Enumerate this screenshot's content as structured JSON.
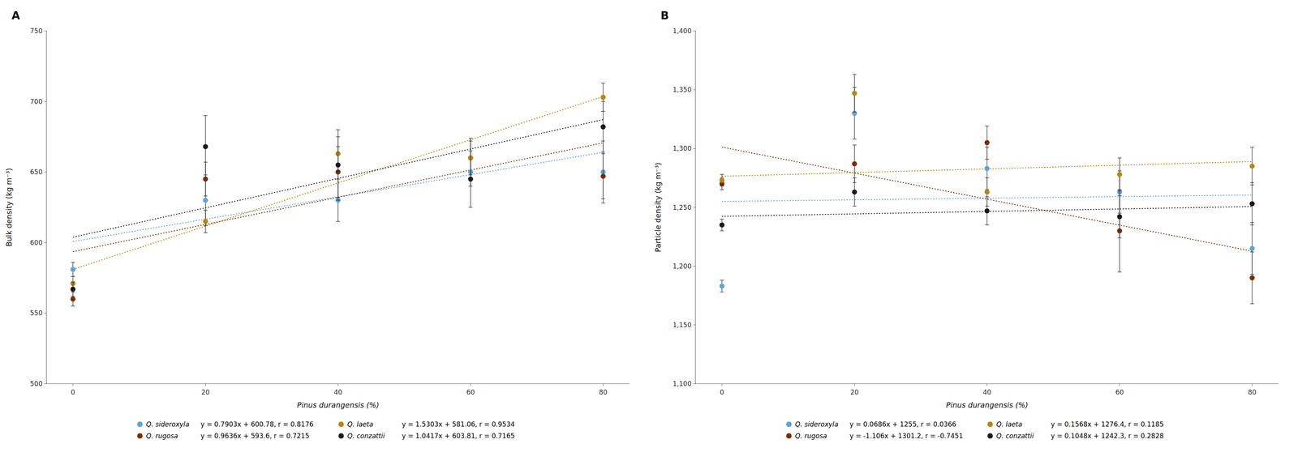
{
  "chart_data": [
    {
      "type": "scatter",
      "title": "A",
      "x_label": "Pinus durangensis (%)",
      "y_label": "Bulk density (kg m⁻³)",
      "x": [
        0,
        20,
        40,
        60,
        80
      ],
      "xlim": [
        -4,
        84
      ],
      "xticks": [
        0,
        20,
        40,
        60,
        80
      ],
      "ylim": [
        500,
        750
      ],
      "yticks": [
        500,
        550,
        600,
        650,
        700,
        750
      ],
      "grid": false,
      "legend": "bottom",
      "marker": "circle",
      "line_style": "dotted",
      "series": [
        {
          "name": "Q. sideroxyla",
          "color": "#5BA4DC",
          "values": [
            581,
            630,
            630,
            650,
            650
          ],
          "errors": [
            5,
            18,
            15,
            10,
            22
          ],
          "equation": "y = 0.7903x + 600.78, r = 0.8176",
          "trend_x": [
            0,
            80
          ],
          "trend_values": [
            600.78,
            664.004
          ]
        },
        {
          "name": "Q. rugosa",
          "color": "#7B2D00",
          "values": [
            560,
            645,
            650,
            660,
            647
          ],
          "errors": [
            5,
            12,
            18,
            14,
            16
          ],
          "equation": "y = 0.9636x + 593.6, r = 0.7215",
          "trend_x": [
            0,
            80
          ],
          "trend_values": [
            593.6,
            670.688
          ]
        },
        {
          "name": "Q. laeta",
          "color": "#B8860B",
          "values": [
            571,
            615,
            663,
            660,
            703
          ],
          "errors": [
            5,
            8,
            12,
            12,
            10
          ],
          "equation": "y = 1.5303x + 581.06, r = 0.9534",
          "trend_x": [
            0,
            80
          ],
          "trend_values": [
            581.06,
            703.484
          ]
        },
        {
          "name": "Q. conzattii",
          "color": "#1A1A1A",
          "values": [
            567,
            668,
            655,
            645,
            682
          ],
          "errors": [
            5,
            22,
            25,
            20,
            18
          ],
          "equation": "y = 1.0417x + 603.81, r = 0.7165",
          "trend_x": [
            0,
            80
          ],
          "trend_values": [
            603.81,
            687.146
          ]
        }
      ]
    },
    {
      "type": "scatter",
      "title": "B",
      "x_label": "Pinus durangensis (%)",
      "y_label": "Particle density (kg m⁻³)",
      "x": [
        0,
        20,
        40,
        60,
        80
      ],
      "xlim": [
        -4,
        84
      ],
      "xticks": [
        0,
        20,
        40,
        60,
        80
      ],
      "ylim": [
        1100,
        1400
      ],
      "yticks": [
        {
          "value": 1100,
          "label": "1,100"
        },
        {
          "value": 1150,
          "label": "1,150"
        },
        {
          "value": 1200,
          "label": "1,200"
        },
        {
          "value": 1250,
          "label": "1,250"
        },
        {
          "value": 1300,
          "label": "1,300"
        },
        {
          "value": 1350,
          "label": "1,350"
        },
        {
          "value": 1400,
          "label": "1,400"
        }
      ],
      "grid": false,
      "legend": "bottom",
      "marker": "circle",
      "line_style": "dotted",
      "series": [
        {
          "name": "Q. sideroxyla",
          "color": "#5BA4DC",
          "values": [
            1183,
            1330,
            1283,
            1263,
            1215
          ],
          "errors": [
            5,
            22,
            18,
            18,
            22
          ],
          "equation": "y = 0.0686x + 1255, r = 0.0366",
          "trend_x": [
            0,
            80
          ],
          "trend_values": [
            1255,
            1260.488
          ]
        },
        {
          "name": "Q. rugosa",
          "color": "#7B2D00",
          "values": [
            1270,
            1287,
            1305,
            1230,
            1190
          ],
          "errors": [
            5,
            16,
            14,
            35,
            22
          ],
          "equation": "y = -1.106x + 1301.2, r = -0.7451",
          "trend_x": [
            0,
            80
          ],
          "trend_values": [
            1301.2,
            1212.72
          ]
        },
        {
          "name": "Q. laeta",
          "color": "#B8860B",
          "values": [
            1273,
            1347,
            1263,
            1278,
            1285
          ],
          "errors": [
            5,
            16,
            12,
            14,
            16
          ],
          "equation": "y = 0.1568x + 1276.4, r = 0.1185",
          "trend_x": [
            0,
            80
          ],
          "trend_values": [
            1276.4,
            1288.944
          ]
        },
        {
          "name": "Q. conzattii",
          "color": "#1A1A1A",
          "values": [
            1235,
            1263,
            1247,
            1242,
            1253
          ],
          "errors": [
            5,
            12,
            12,
            18,
            18
          ],
          "equation": "y = 0.1048x + 1242.3, r = 0.2828",
          "trend_x": [
            0,
            80
          ],
          "trend_values": [
            1242.3,
            1250.684
          ]
        }
      ]
    }
  ]
}
